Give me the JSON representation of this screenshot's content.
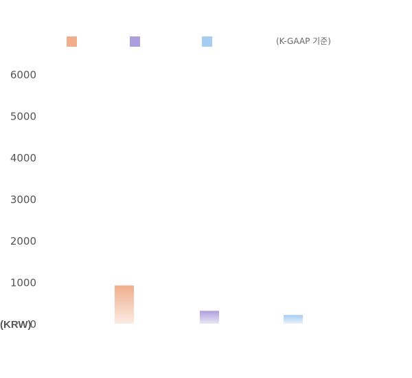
{
  "legend": {
    "note": "(K-GAAP 기준)",
    "swatches": [
      {
        "color": "#f0ae8d"
      },
      {
        "color": "#ab9fdd"
      },
      {
        "color": "#a5cdf0"
      }
    ]
  },
  "chart_data": {
    "type": "bar",
    "categories": [
      "",
      "",
      ""
    ],
    "values": [
      920,
      310,
      210
    ],
    "colors": [
      "#f0ae8d",
      "#ab9fdd",
      "#a5cdf0"
    ],
    "ylim": [
      0,
      6000
    ],
    "yticks": [
      0,
      1000,
      2000,
      3000,
      4000,
      5000,
      6000
    ],
    "ylabel": "(KRW)",
    "grid": false,
    "legend_position": "top"
  }
}
